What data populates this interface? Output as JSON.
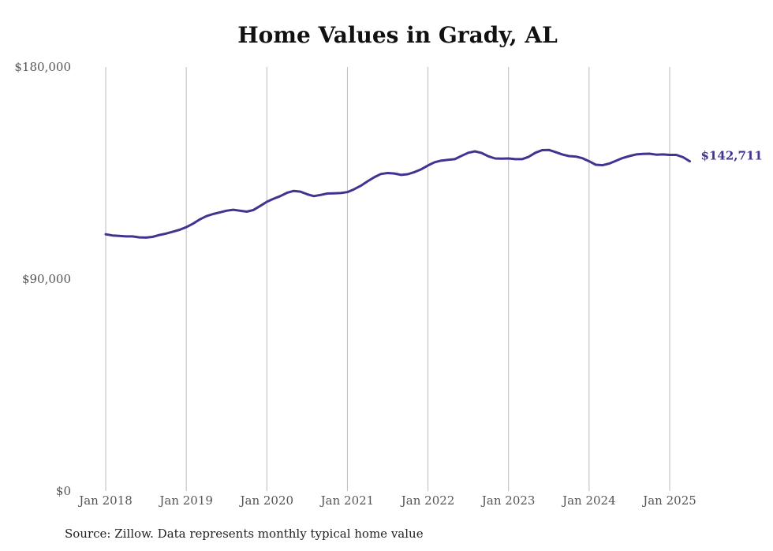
{
  "chart_data": {
    "type": "line",
    "title": "Home Values in Grady, AL",
    "source": "Source: Zillow. Data represents monthly typical home value",
    "end_label": "$142,711",
    "line_color": "#3f3590",
    "gridline_color": "#bbbbbb",
    "ylim": [
      0,
      180000
    ],
    "y_ticks": [
      {
        "value": 0,
        "label": "$0"
      },
      {
        "value": 90000,
        "label": "$90,000"
      },
      {
        "value": 180000,
        "label": "$180,000"
      }
    ],
    "x_ticks": [
      {
        "value": 2018.0,
        "label": "Jan 2018"
      },
      {
        "value": 2019.0,
        "label": "Jan 2019"
      },
      {
        "value": 2020.0,
        "label": "Jan 2020"
      },
      {
        "value": 2021.0,
        "label": "Jan 2021"
      },
      {
        "value": 2022.0,
        "label": "Jan 2022"
      },
      {
        "value": 2023.0,
        "label": "Jan 2023"
      },
      {
        "value": 2024.0,
        "label": "Jan 2024"
      },
      {
        "value": 2025.0,
        "label": "Jan 2025"
      }
    ],
    "xlim": [
      2018.0,
      2025.0
    ],
    "series": [
      {
        "points": [
          [
            2018.0,
            109000
          ],
          [
            2018.083,
            108500
          ],
          [
            2018.167,
            108300
          ],
          [
            2018.25,
            108100
          ],
          [
            2018.333,
            108100
          ],
          [
            2018.417,
            107700
          ],
          [
            2018.5,
            107600
          ],
          [
            2018.583,
            107900
          ],
          [
            2018.667,
            108700
          ],
          [
            2018.75,
            109300
          ],
          [
            2018.833,
            110100
          ],
          [
            2018.917,
            110900
          ],
          [
            2019.0,
            112000
          ],
          [
            2019.083,
            113500
          ],
          [
            2019.167,
            115300
          ],
          [
            2019.25,
            116700
          ],
          [
            2019.333,
            117600
          ],
          [
            2019.417,
            118300
          ],
          [
            2019.5,
            119000
          ],
          [
            2019.583,
            119400
          ],
          [
            2019.667,
            119000
          ],
          [
            2019.75,
            118600
          ],
          [
            2019.833,
            119300
          ],
          [
            2019.917,
            121000
          ],
          [
            2020.0,
            122800
          ],
          [
            2020.083,
            124100
          ],
          [
            2020.167,
            125200
          ],
          [
            2020.25,
            126600
          ],
          [
            2020.333,
            127400
          ],
          [
            2020.417,
            127100
          ],
          [
            2020.5,
            126000
          ],
          [
            2020.583,
            125200
          ],
          [
            2020.667,
            125700
          ],
          [
            2020.75,
            126300
          ],
          [
            2020.833,
            126400
          ],
          [
            2020.917,
            126500
          ],
          [
            2021.0,
            126900
          ],
          [
            2021.083,
            128100
          ],
          [
            2021.167,
            129600
          ],
          [
            2021.25,
            131500
          ],
          [
            2021.333,
            133200
          ],
          [
            2021.417,
            134600
          ],
          [
            2021.5,
            135000
          ],
          [
            2021.583,
            134800
          ],
          [
            2021.667,
            134200
          ],
          [
            2021.75,
            134500
          ],
          [
            2021.833,
            135400
          ],
          [
            2021.917,
            136600
          ],
          [
            2022.0,
            138200
          ],
          [
            2022.083,
            139600
          ],
          [
            2022.167,
            140300
          ],
          [
            2022.25,
            140600
          ],
          [
            2022.333,
            140900
          ],
          [
            2022.417,
            142300
          ],
          [
            2022.5,
            143600
          ],
          [
            2022.583,
            144200
          ],
          [
            2022.667,
            143500
          ],
          [
            2022.75,
            142100
          ],
          [
            2022.833,
            141200
          ],
          [
            2022.917,
            141100
          ],
          [
            2023.0,
            141200
          ],
          [
            2023.083,
            140900
          ],
          [
            2023.167,
            140900
          ],
          [
            2023.25,
            141900
          ],
          [
            2023.333,
            143600
          ],
          [
            2023.417,
            144700
          ],
          [
            2023.5,
            144800
          ],
          [
            2023.583,
            143900
          ],
          [
            2023.667,
            142900
          ],
          [
            2023.75,
            142200
          ],
          [
            2023.833,
            142000
          ],
          [
            2023.917,
            141300
          ],
          [
            2024.0,
            140000
          ],
          [
            2024.083,
            138500
          ],
          [
            2024.167,
            138300
          ],
          [
            2024.25,
            139000
          ],
          [
            2024.333,
            140200
          ],
          [
            2024.417,
            141400
          ],
          [
            2024.5,
            142200
          ],
          [
            2024.583,
            142900
          ],
          [
            2024.667,
            143100
          ],
          [
            2024.75,
            143200
          ],
          [
            2024.833,
            142800
          ],
          [
            2024.917,
            142900
          ],
          [
            2025.0,
            142700
          ],
          [
            2025.083,
            142700
          ],
          [
            2025.167,
            141700
          ],
          [
            2025.25,
            140000
          ]
        ]
      }
    ]
  }
}
